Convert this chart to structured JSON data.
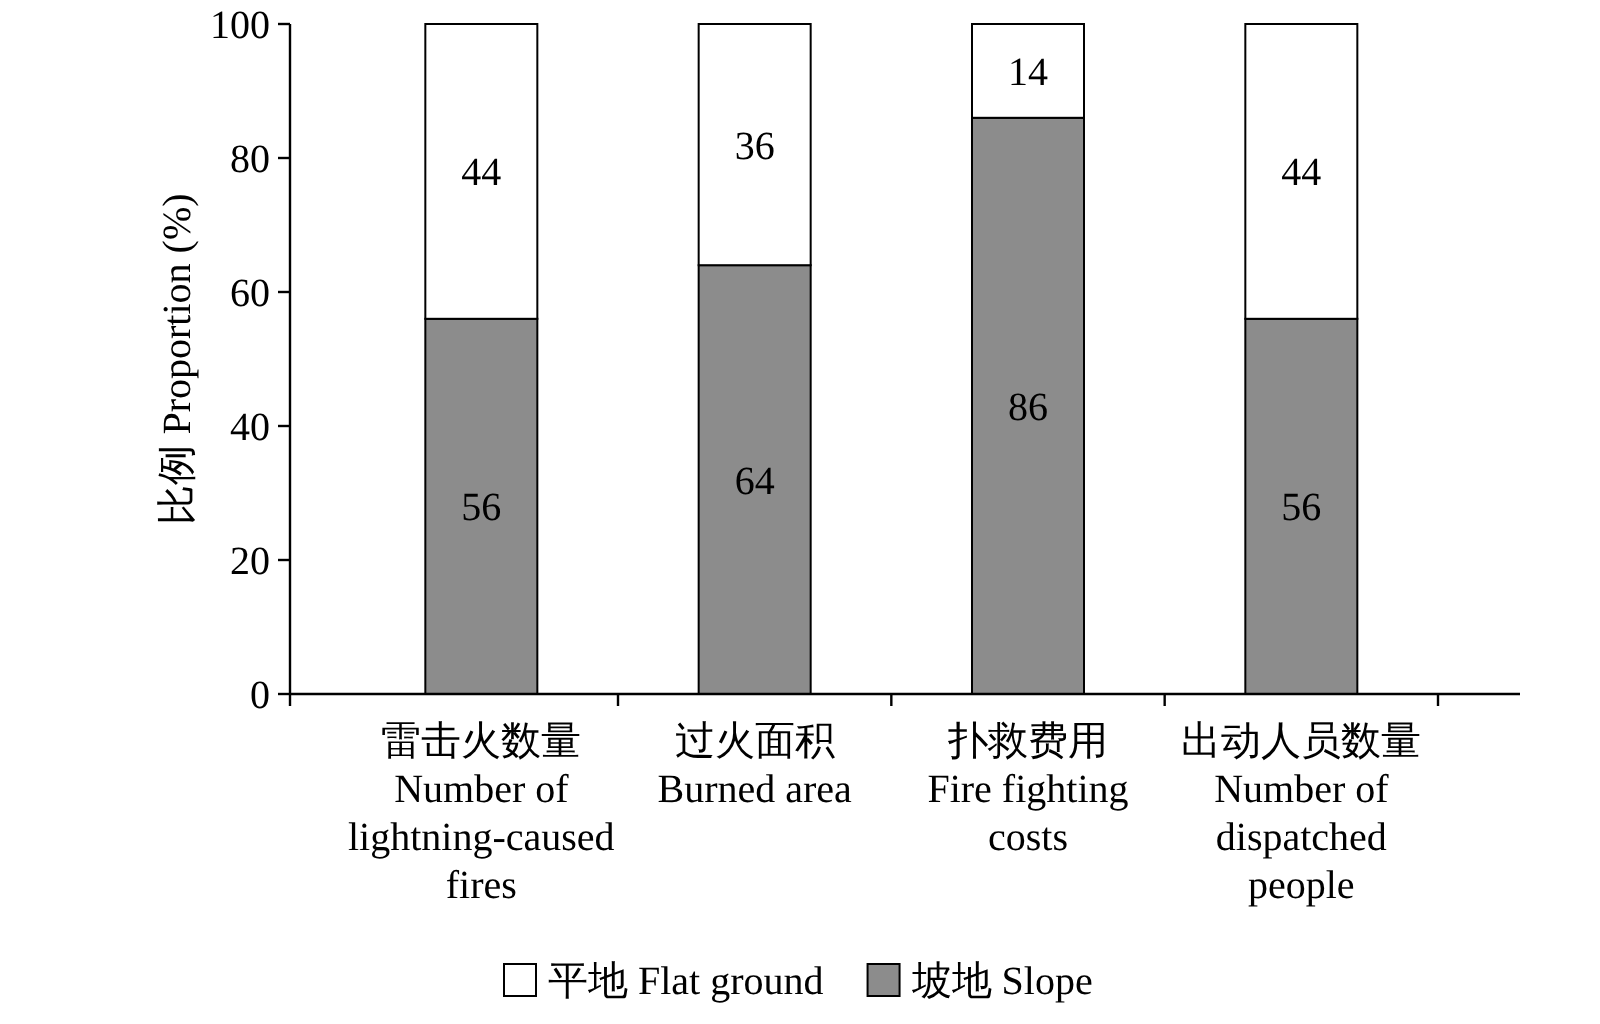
{
  "chart_data": {
    "type": "bar",
    "stacked": true,
    "ylabel": "比例 Proportion (%)",
    "categories": [
      "雷击火数量 Number of lightning-caused fires",
      "过火面积 Burned area",
      "扑救费用 Fire fighting costs",
      "出动人员数量 Number of dispatched people"
    ],
    "series": [
      {
        "name": "坡地 Slope",
        "color": "#8c8c8c",
        "values": [
          56,
          64,
          86,
          56
        ]
      },
      {
        "name": "平地 Flat ground",
        "color": "#ffffff",
        "values": [
          44,
          36,
          14,
          44
        ]
      }
    ],
    "ylim": [
      0,
      100
    ],
    "yticks": [
      0,
      20,
      40,
      60,
      80,
      100
    ],
    "data_labels": true,
    "legend": "bottom"
  }
}
